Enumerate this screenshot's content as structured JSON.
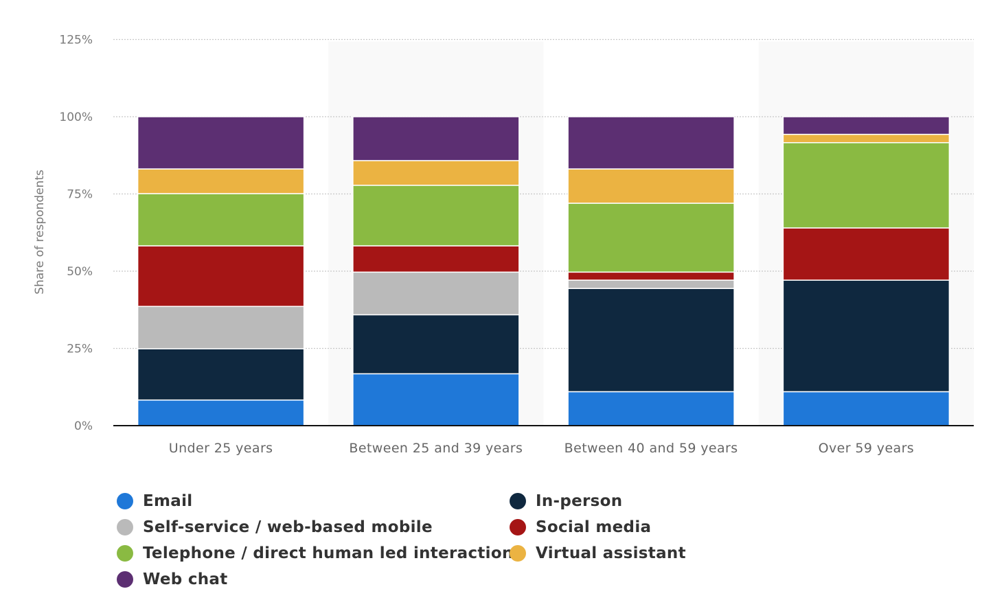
{
  "chart_data": {
    "type": "bar",
    "stacked": true,
    "title": "",
    "xlabel": "",
    "ylabel": "Share of respondents",
    "ylim": [
      0,
      125
    ],
    "yticks": [
      0,
      25,
      50,
      75,
      100,
      125
    ],
    "ytick_labels": [
      "0%",
      "25%",
      "50%",
      "75%",
      "100%",
      "125%"
    ],
    "grid": true,
    "legend_position": "bottom-left",
    "categories": [
      "Under 25 years",
      "Between 25 and 39 years",
      "Between 40 and 59 years",
      "Over 59 years"
    ],
    "series": [
      {
        "name": "Email",
        "color": "#1f78d8",
        "values": [
          8.3,
          16.8,
          11.0,
          11.0
        ]
      },
      {
        "name": "In-person",
        "color": "#0f283f",
        "values": [
          16.6,
          19.1,
          33.4,
          36.1
        ]
      },
      {
        "name": "Self-service / web-based mobile",
        "color": "#bababa",
        "values": [
          13.7,
          13.8,
          2.7,
          0.0
        ]
      },
      {
        "name": "Social media",
        "color": "#a51515",
        "values": [
          19.6,
          8.5,
          2.6,
          16.9
        ]
      },
      {
        "name": "Telephone / direct human led interaction",
        "color": "#8aba42",
        "values": [
          16.9,
          19.6,
          22.3,
          27.6
        ]
      },
      {
        "name": "Virtual assistant",
        "color": "#ebb342",
        "values": [
          8.0,
          8.0,
          11.1,
          2.7
        ]
      },
      {
        "name": "Web chat",
        "color": "#5c2f72",
        "values": [
          16.9,
          14.2,
          16.9,
          5.7
        ]
      }
    ]
  },
  "legend": {
    "items": [
      {
        "label": "Email",
        "color": "#1f78d8"
      },
      {
        "label": "In-person",
        "color": "#0f283f"
      },
      {
        "label": "Self-service / web-based mobile",
        "color": "#bababa"
      },
      {
        "label": "Social media",
        "color": "#a51515"
      },
      {
        "label": "Telephone / direct human led interaction",
        "color": "#8aba42"
      },
      {
        "label": "Virtual assistant",
        "color": "#ebb342"
      },
      {
        "label": "Web chat",
        "color": "#5c2f72"
      }
    ]
  }
}
